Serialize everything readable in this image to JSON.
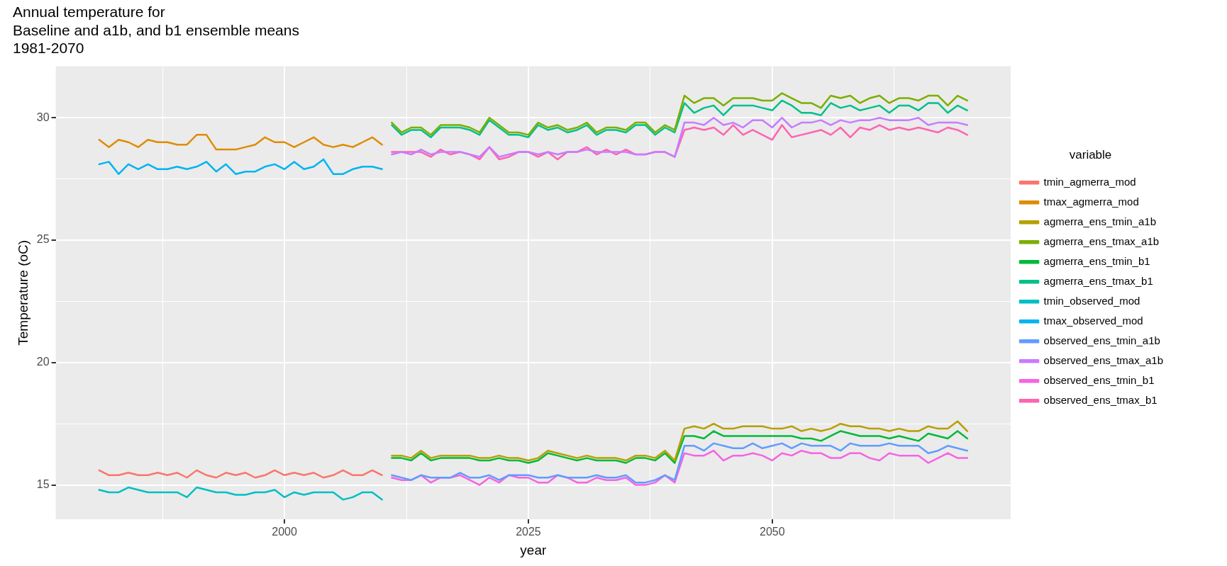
{
  "chart_data": {
    "type": "line",
    "title": "Annual temperature for\nBaseline and a1b, and b1 ensemble means\n1981-2070",
    "xlabel": "year",
    "ylabel": "Temperature (oC)",
    "legend_title": "variable",
    "legend": "right",
    "grid": true,
    "xlim": [
      1976.55,
      2074.45
    ],
    "xticks": [
      {
        "value": 1987.5,
        "label": null
      },
      2000,
      {
        "value": 2012.5,
        "label": null
      },
      2025,
      {
        "value": 2037.5,
        "label": null
      },
      2050,
      {
        "value": 2062.5,
        "label": null
      }
    ],
    "ylim": [
      13.6,
      32.1
    ],
    "yticks": [
      15,
      {
        "value": 17.5,
        "label": null
      },
      20,
      {
        "value": 22.5,
        "label": null
      },
      25,
      {
        "value": 27.5,
        "label": null
      },
      30
    ],
    "series": [
      {
        "name": "tmin_agmerra_mod",
        "color": "#f8766d",
        "x": [
          1981,
          1982,
          1983,
          1984,
          1985,
          1986,
          1987,
          1988,
          1989,
          1990,
          1991,
          1992,
          1993,
          1994,
          1995,
          1996,
          1997,
          1998,
          1999,
          2000,
          2001,
          2002,
          2003,
          2004,
          2005,
          2006,
          2007,
          2008,
          2009,
          2010
        ],
        "values": [
          15.6,
          15.4,
          15.4,
          15.5,
          15.4,
          15.4,
          15.5,
          15.4,
          15.5,
          15.3,
          15.6,
          15.4,
          15.3,
          15.5,
          15.4,
          15.5,
          15.3,
          15.4,
          15.6,
          15.4,
          15.5,
          15.4,
          15.5,
          15.3,
          15.4,
          15.6,
          15.4,
          15.4,
          15.6,
          15.4
        ]
      },
      {
        "name": "tmax_agmerra_mod",
        "color": "#de8c00",
        "x": [
          1981,
          1982,
          1983,
          1984,
          1985,
          1986,
          1987,
          1988,
          1989,
          1990,
          1991,
          1992,
          1993,
          1994,
          1995,
          1996,
          1997,
          1998,
          1999,
          2000,
          2001,
          2002,
          2003,
          2004,
          2005,
          2006,
          2007,
          2008,
          2009,
          2010
        ],
        "values": [
          29.1,
          28.8,
          29.1,
          29.0,
          28.8,
          29.1,
          29.0,
          29.0,
          28.9,
          28.9,
          29.3,
          29.3,
          28.7,
          28.7,
          28.7,
          28.8,
          28.9,
          29.2,
          29.0,
          29.0,
          28.8,
          29.0,
          29.2,
          28.9,
          28.8,
          28.9,
          28.8,
          29.0,
          29.2,
          28.9
        ]
      },
      {
        "name": "agmerra_ens_tmin_a1b",
        "color": "#b79f00",
        "x": [
          2011,
          2012,
          2013,
          2014,
          2015,
          2016,
          2017,
          2018,
          2019,
          2020,
          2021,
          2022,
          2023,
          2024,
          2025,
          2026,
          2027,
          2028,
          2029,
          2030,
          2031,
          2032,
          2033,
          2034,
          2035,
          2036,
          2037,
          2038,
          2039,
          2040,
          2041,
          2042,
          2043,
          2044,
          2045,
          2046,
          2047,
          2048,
          2049,
          2050,
          2051,
          2052,
          2053,
          2054,
          2055,
          2056,
          2057,
          2058,
          2059,
          2060,
          2061,
          2062,
          2063,
          2064,
          2065,
          2066,
          2067,
          2068,
          2069,
          2070
        ],
        "values": [
          16.2,
          16.2,
          16.1,
          16.4,
          16.1,
          16.2,
          16.2,
          16.2,
          16.2,
          16.1,
          16.1,
          16.2,
          16.1,
          16.1,
          16.0,
          16.1,
          16.4,
          16.3,
          16.2,
          16.1,
          16.2,
          16.1,
          16.1,
          16.1,
          16.0,
          16.2,
          16.2,
          16.1,
          16.4,
          16.0,
          17.3,
          17.4,
          17.3,
          17.5,
          17.3,
          17.3,
          17.4,
          17.4,
          17.4,
          17.3,
          17.3,
          17.4,
          17.2,
          17.3,
          17.2,
          17.3,
          17.5,
          17.4,
          17.4,
          17.3,
          17.3,
          17.2,
          17.3,
          17.2,
          17.2,
          17.4,
          17.3,
          17.3,
          17.6,
          17.2
        ]
      },
      {
        "name": "agmerra_ens_tmax_a1b",
        "color": "#7cae00",
        "x": [
          2011,
          2012,
          2013,
          2014,
          2015,
          2016,
          2017,
          2018,
          2019,
          2020,
          2021,
          2022,
          2023,
          2024,
          2025,
          2026,
          2027,
          2028,
          2029,
          2030,
          2031,
          2032,
          2033,
          2034,
          2035,
          2036,
          2037,
          2038,
          2039,
          2040,
          2041,
          2042,
          2043,
          2044,
          2045,
          2046,
          2047,
          2048,
          2049,
          2050,
          2051,
          2052,
          2053,
          2054,
          2055,
          2056,
          2057,
          2058,
          2059,
          2060,
          2061,
          2062,
          2063,
          2064,
          2065,
          2066,
          2067,
          2068,
          2069,
          2070
        ],
        "values": [
          29.8,
          29.4,
          29.6,
          29.6,
          29.3,
          29.7,
          29.7,
          29.7,
          29.6,
          29.4,
          30.0,
          29.7,
          29.4,
          29.4,
          29.3,
          29.8,
          29.6,
          29.7,
          29.5,
          29.6,
          29.8,
          29.4,
          29.6,
          29.6,
          29.5,
          29.8,
          29.8,
          29.4,
          29.7,
          29.5,
          30.9,
          30.6,
          30.8,
          30.8,
          30.5,
          30.8,
          30.8,
          30.8,
          30.7,
          30.7,
          31.0,
          30.8,
          30.6,
          30.6,
          30.4,
          30.9,
          30.8,
          30.9,
          30.6,
          30.8,
          30.9,
          30.6,
          30.8,
          30.8,
          30.7,
          30.9,
          30.9,
          30.5,
          30.9,
          30.7
        ]
      },
      {
        "name": "agmerra_ens_tmin_b1",
        "color": "#00ba38",
        "x": [
          2011,
          2012,
          2013,
          2014,
          2015,
          2016,
          2017,
          2018,
          2019,
          2020,
          2021,
          2022,
          2023,
          2024,
          2025,
          2026,
          2027,
          2028,
          2029,
          2030,
          2031,
          2032,
          2033,
          2034,
          2035,
          2036,
          2037,
          2038,
          2039,
          2040,
          2041,
          2042,
          2043,
          2044,
          2045,
          2046,
          2047,
          2048,
          2049,
          2050,
          2051,
          2052,
          2053,
          2054,
          2055,
          2056,
          2057,
          2058,
          2059,
          2060,
          2061,
          2062,
          2063,
          2064,
          2065,
          2066,
          2067,
          2068,
          2069,
          2070
        ],
        "values": [
          16.1,
          16.1,
          16.0,
          16.3,
          16.0,
          16.1,
          16.1,
          16.1,
          16.1,
          16.0,
          16.0,
          16.1,
          16.0,
          16.0,
          15.9,
          16.0,
          16.3,
          16.2,
          16.1,
          16.0,
          16.1,
          16.0,
          16.0,
          16.0,
          15.9,
          16.1,
          16.1,
          16.0,
          16.3,
          15.9,
          17.0,
          17.0,
          16.9,
          17.2,
          17.0,
          17.0,
          17.0,
          17.0,
          17.0,
          17.0,
          17.0,
          17.0,
          16.9,
          16.9,
          16.8,
          17.0,
          17.2,
          17.1,
          17.0,
          17.0,
          17.0,
          16.9,
          17.0,
          16.9,
          16.8,
          17.1,
          17.0,
          16.9,
          17.2,
          16.9
        ]
      },
      {
        "name": "agmerra_ens_tmax_b1",
        "color": "#00c08b",
        "x": [
          2011,
          2012,
          2013,
          2014,
          2015,
          2016,
          2017,
          2018,
          2019,
          2020,
          2021,
          2022,
          2023,
          2024,
          2025,
          2026,
          2027,
          2028,
          2029,
          2030,
          2031,
          2032,
          2033,
          2034,
          2035,
          2036,
          2037,
          2038,
          2039,
          2040,
          2041,
          2042,
          2043,
          2044,
          2045,
          2046,
          2047,
          2048,
          2049,
          2050,
          2051,
          2052,
          2053,
          2054,
          2055,
          2056,
          2057,
          2058,
          2059,
          2060,
          2061,
          2062,
          2063,
          2064,
          2065,
          2066,
          2067,
          2068,
          2069,
          2070
        ],
        "values": [
          29.7,
          29.3,
          29.5,
          29.5,
          29.2,
          29.6,
          29.6,
          29.6,
          29.5,
          29.3,
          29.9,
          29.6,
          29.3,
          29.3,
          29.2,
          29.7,
          29.5,
          29.6,
          29.4,
          29.5,
          29.7,
          29.3,
          29.5,
          29.5,
          29.4,
          29.7,
          29.7,
          29.3,
          29.6,
          29.4,
          30.6,
          30.2,
          30.4,
          30.5,
          30.1,
          30.5,
          30.5,
          30.5,
          30.4,
          30.3,
          30.7,
          30.5,
          30.2,
          30.2,
          30.1,
          30.6,
          30.4,
          30.5,
          30.3,
          30.4,
          30.5,
          30.2,
          30.5,
          30.5,
          30.3,
          30.6,
          30.6,
          30.2,
          30.5,
          30.3
        ]
      },
      {
        "name": "tmin_observed_mod",
        "color": "#00bfc4",
        "x": [
          1981,
          1982,
          1983,
          1984,
          1985,
          1986,
          1987,
          1988,
          1989,
          1990,
          1991,
          1992,
          1993,
          1994,
          1995,
          1996,
          1997,
          1998,
          1999,
          2000,
          2001,
          2002,
          2003,
          2004,
          2005,
          2006,
          2007,
          2008,
          2009,
          2010
        ],
        "values": [
          14.8,
          14.7,
          14.7,
          14.9,
          14.8,
          14.7,
          14.7,
          14.7,
          14.7,
          14.5,
          14.9,
          14.8,
          14.7,
          14.7,
          14.6,
          14.6,
          14.7,
          14.7,
          14.8,
          14.5,
          14.7,
          14.6,
          14.7,
          14.7,
          14.7,
          14.4,
          14.5,
          14.7,
          14.7,
          14.4
        ]
      },
      {
        "name": "tmax_observed_mod",
        "color": "#00b4f0",
        "x": [
          1981,
          1982,
          1983,
          1984,
          1985,
          1986,
          1987,
          1988,
          1989,
          1990,
          1991,
          1992,
          1993,
          1994,
          1995,
          1996,
          1997,
          1998,
          1999,
          2000,
          2001,
          2002,
          2003,
          2004,
          2005,
          2006,
          2007,
          2008,
          2009,
          2010
        ],
        "values": [
          28.1,
          28.2,
          27.7,
          28.1,
          27.9,
          28.1,
          27.9,
          27.9,
          28.0,
          27.9,
          28.0,
          28.2,
          27.8,
          28.1,
          27.7,
          27.8,
          27.8,
          28.0,
          28.1,
          27.9,
          28.2,
          27.9,
          28.0,
          28.3,
          27.7,
          27.7,
          27.9,
          28.0,
          28.0,
          27.9
        ]
      },
      {
        "name": "observed_ens_tmin_a1b",
        "color": "#619cff",
        "x": [
          2011,
          2012,
          2013,
          2014,
          2015,
          2016,
          2017,
          2018,
          2019,
          2020,
          2021,
          2022,
          2023,
          2024,
          2025,
          2026,
          2027,
          2028,
          2029,
          2030,
          2031,
          2032,
          2033,
          2034,
          2035,
          2036,
          2037,
          2038,
          2039,
          2040,
          2041,
          2042,
          2043,
          2044,
          2045,
          2046,
          2047,
          2048,
          2049,
          2050,
          2051,
          2052,
          2053,
          2054,
          2055,
          2056,
          2057,
          2058,
          2059,
          2060,
          2061,
          2062,
          2063,
          2064,
          2065,
          2066,
          2067,
          2068,
          2069,
          2070
        ],
        "values": [
          15.4,
          15.3,
          15.2,
          15.4,
          15.3,
          15.3,
          15.3,
          15.5,
          15.3,
          15.3,
          15.4,
          15.2,
          15.4,
          15.4,
          15.4,
          15.3,
          15.3,
          15.4,
          15.3,
          15.3,
          15.3,
          15.4,
          15.3,
          15.3,
          15.4,
          15.1,
          15.1,
          15.2,
          15.4,
          15.2,
          16.6,
          16.6,
          16.4,
          16.7,
          16.6,
          16.5,
          16.5,
          16.7,
          16.5,
          16.6,
          16.7,
          16.5,
          16.7,
          16.6,
          16.6,
          16.6,
          16.4,
          16.7,
          16.6,
          16.6,
          16.6,
          16.7,
          16.6,
          16.6,
          16.6,
          16.3,
          16.4,
          16.6,
          16.5,
          16.4
        ]
      },
      {
        "name": "observed_ens_tmax_a1b",
        "color": "#c77cff",
        "x": [
          2011,
          2012,
          2013,
          2014,
          2015,
          2016,
          2017,
          2018,
          2019,
          2020,
          2021,
          2022,
          2023,
          2024,
          2025,
          2026,
          2027,
          2028,
          2029,
          2030,
          2031,
          2032,
          2033,
          2034,
          2035,
          2036,
          2037,
          2038,
          2039,
          2040,
          2041,
          2042,
          2043,
          2044,
          2045,
          2046,
          2047,
          2048,
          2049,
          2050,
          2051,
          2052,
          2053,
          2054,
          2055,
          2056,
          2057,
          2058,
          2059,
          2060,
          2061,
          2062,
          2063,
          2064,
          2065,
          2066,
          2067,
          2068,
          2069,
          2070
        ],
        "values": [
          28.5,
          28.6,
          28.5,
          28.7,
          28.5,
          28.6,
          28.6,
          28.6,
          28.5,
          28.4,
          28.8,
          28.4,
          28.5,
          28.6,
          28.6,
          28.5,
          28.6,
          28.5,
          28.6,
          28.6,
          28.7,
          28.6,
          28.6,
          28.6,
          28.6,
          28.5,
          28.5,
          28.6,
          28.6,
          28.4,
          29.8,
          29.8,
          29.7,
          30.0,
          29.7,
          29.8,
          29.6,
          29.9,
          29.9,
          29.6,
          30.0,
          29.6,
          29.8,
          29.8,
          29.9,
          29.7,
          29.9,
          29.8,
          29.9,
          29.9,
          30.0,
          29.9,
          29.9,
          29.9,
          30.0,
          29.7,
          29.8,
          29.8,
          29.8,
          29.7
        ]
      },
      {
        "name": "observed_ens_tmin_b1",
        "color": "#f564e3",
        "x": [
          2011,
          2012,
          2013,
          2014,
          2015,
          2016,
          2017,
          2018,
          2019,
          2020,
          2021,
          2022,
          2023,
          2024,
          2025,
          2026,
          2027,
          2028,
          2029,
          2030,
          2031,
          2032,
          2033,
          2034,
          2035,
          2036,
          2037,
          2038,
          2039,
          2040,
          2041,
          2042,
          2043,
          2044,
          2045,
          2046,
          2047,
          2048,
          2049,
          2050,
          2051,
          2052,
          2053,
          2054,
          2055,
          2056,
          2057,
          2058,
          2059,
          2060,
          2061,
          2062,
          2063,
          2064,
          2065,
          2066,
          2067,
          2068,
          2069,
          2070
        ],
        "values": [
          15.3,
          15.2,
          15.2,
          15.4,
          15.1,
          15.3,
          15.3,
          15.4,
          15.2,
          15.0,
          15.3,
          15.1,
          15.4,
          15.3,
          15.3,
          15.1,
          15.1,
          15.4,
          15.3,
          15.1,
          15.1,
          15.3,
          15.2,
          15.2,
          15.3,
          15.0,
          15.0,
          15.1,
          15.4,
          15.1,
          16.3,
          16.2,
          16.2,
          16.4,
          16.0,
          16.2,
          16.2,
          16.3,
          16.2,
          16.0,
          16.3,
          16.2,
          16.4,
          16.3,
          16.3,
          16.1,
          16.1,
          16.3,
          16.3,
          16.1,
          16.0,
          16.3,
          16.2,
          16.2,
          16.2,
          15.9,
          16.1,
          16.3,
          16.1,
          16.1
        ]
      },
      {
        "name": "observed_ens_tmax_b1",
        "color": "#ff64b0",
        "x": [
          2011,
          2012,
          2013,
          2014,
          2015,
          2016,
          2017,
          2018,
          2019,
          2020,
          2021,
          2022,
          2023,
          2024,
          2025,
          2026,
          2027,
          2028,
          2029,
          2030,
          2031,
          2032,
          2033,
          2034,
          2035,
          2036,
          2037,
          2038,
          2039,
          2040,
          2041,
          2042,
          2043,
          2044,
          2045,
          2046,
          2047,
          2048,
          2049,
          2050,
          2051,
          2052,
          2053,
          2054,
          2055,
          2056,
          2057,
          2058,
          2059,
          2060,
          2061,
          2062,
          2063,
          2064,
          2065,
          2066,
          2067,
          2068,
          2069,
          2070
        ],
        "values": [
          28.6,
          28.6,
          28.6,
          28.6,
          28.4,
          28.7,
          28.5,
          28.6,
          28.5,
          28.3,
          28.8,
          28.3,
          28.4,
          28.6,
          28.6,
          28.4,
          28.6,
          28.3,
          28.6,
          28.6,
          28.8,
          28.5,
          28.7,
          28.5,
          28.7,
          28.5,
          28.5,
          28.6,
          28.6,
          28.4,
          29.5,
          29.6,
          29.5,
          29.6,
          29.3,
          29.7,
          29.3,
          29.5,
          29.3,
          29.1,
          29.7,
          29.2,
          29.3,
          29.4,
          29.5,
          29.3,
          29.6,
          29.2,
          29.6,
          29.5,
          29.7,
          29.5,
          29.6,
          29.5,
          29.6,
          29.5,
          29.4,
          29.6,
          29.5,
          29.3
        ]
      }
    ]
  }
}
